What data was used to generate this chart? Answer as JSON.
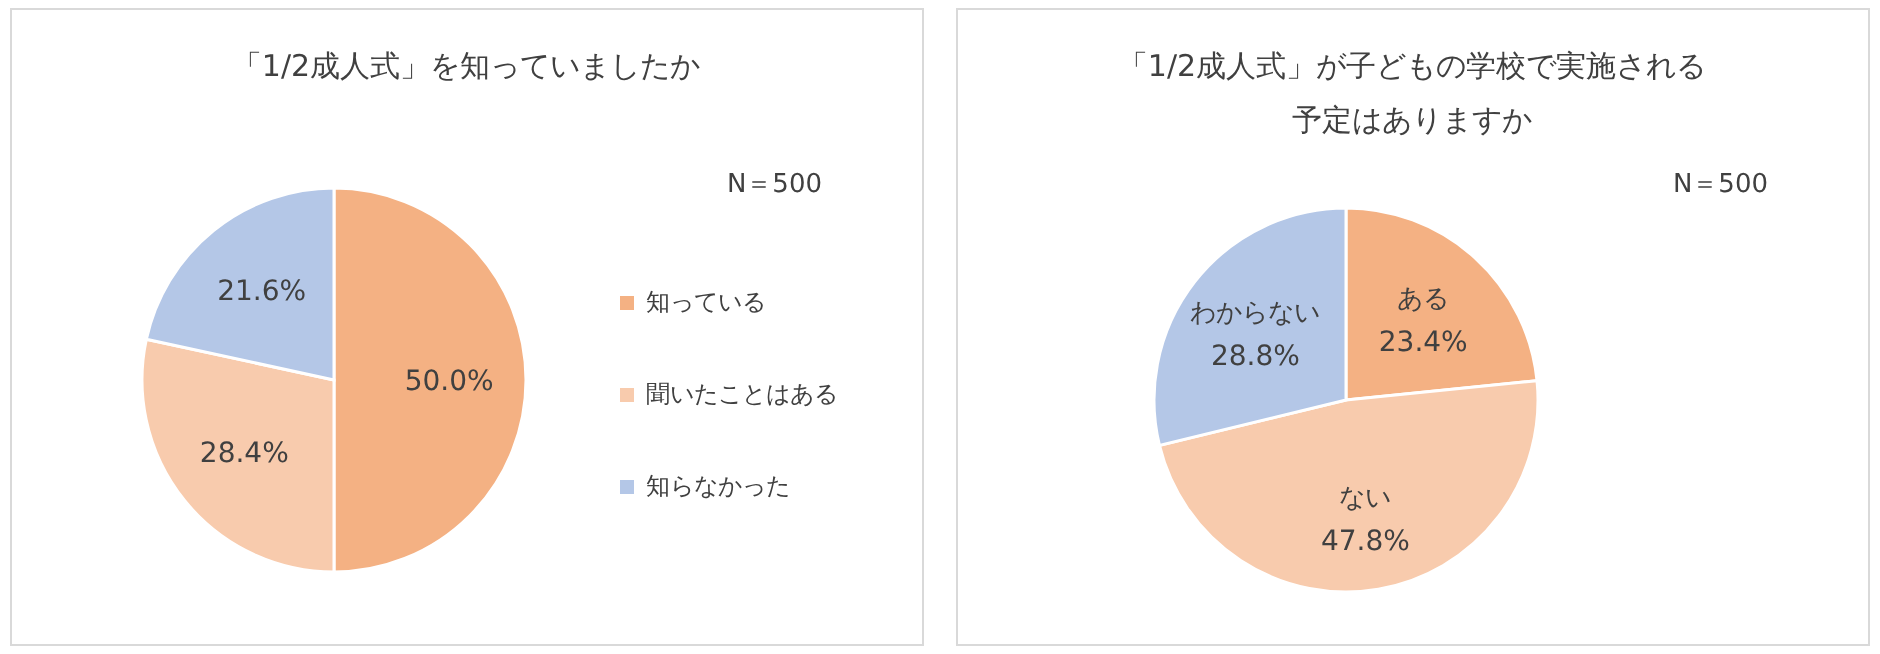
{
  "chart_data": [
    {
      "type": "pie",
      "title": "「1/2成人式」を知っていましたか",
      "annotations": [
        "N＝500"
      ],
      "categories": [
        "知っている",
        "聞いたことはある",
        "知らなかった"
      ],
      "values": [
        50.0,
        28.4,
        21.6
      ],
      "value_labels": [
        "50.0%",
        "28.4%",
        "21.6%"
      ],
      "colors": [
        "#f4b183",
        "#f8cbad",
        "#b4c7e7"
      ],
      "legend": "right"
    },
    {
      "type": "pie",
      "title": "「1/2成人式」が子どもの学校で実施される予定はありますか",
      "annotations": [
        "N＝500"
      ],
      "categories": [
        "ある",
        "ない",
        "わからない"
      ],
      "values": [
        23.4,
        47.8,
        28.8
      ],
      "value_labels": [
        "23.4%",
        "47.8%",
        "28.8%"
      ],
      "colors": [
        "#f4b183",
        "#f8cbad",
        "#b4c7e7"
      ],
      "legend": false
    }
  ]
}
